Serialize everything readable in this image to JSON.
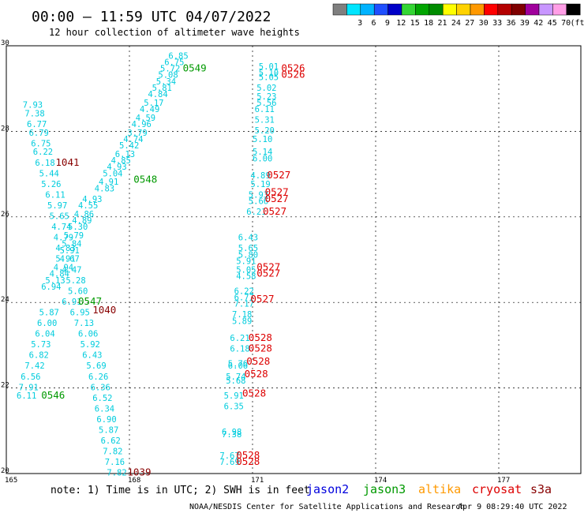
{
  "header": {
    "title": "00:00 – 11:59 UTC 04/07/2022",
    "subtitle": "12 hour collection of altimeter wave heights"
  },
  "color_scale": {
    "bins": [
      {
        "label": "",
        "color": "#7f7f7f"
      },
      {
        "label": "3",
        "color": "#00e5ff"
      },
      {
        "label": "6",
        "color": "#00b3ff"
      },
      {
        "label": "9",
        "color": "#1f4fff"
      },
      {
        "label": "12",
        "color": "#0000c8"
      },
      {
        "label": "15",
        "color": "#33d633"
      },
      {
        "label": "18",
        "color": "#00a500"
      },
      {
        "label": "21",
        "color": "#008c00"
      },
      {
        "label": "24",
        "color": "#ffff00"
      },
      {
        "label": "27",
        "color": "#ffd200"
      },
      {
        "label": "30",
        "color": "#ff9900"
      },
      {
        "label": "33",
        "color": "#ff0000"
      },
      {
        "label": "36",
        "color": "#b40000"
      },
      {
        "label": "39",
        "color": "#7f0000"
      },
      {
        "label": "42",
        "color": "#a0009c"
      },
      {
        "label": "45",
        "color": "#c896ff"
      },
      {
        "label": "70",
        "color": "#ff9ee6"
      },
      {
        "label": "(ft)",
        "color": "#000000"
      }
    ]
  },
  "footer": {
    "note": "note: 1) Time is in UTC; 2) SWH is in feet",
    "credit": "NOAA/NESDIS Center for Satellite Applications and Research",
    "generated": "Apr  9 08:29:40 UTC 2022"
  },
  "legend": [
    {
      "name": "jason2",
      "color": "#0000dd"
    },
    {
      "name": "jason3",
      "color": "#009900"
    },
    {
      "name": "altika",
      "color": "#ff9900"
    },
    {
      "name": "cryosat",
      "color": "#dd0000"
    },
    {
      "name": "s3a",
      "color": "#880000"
    }
  ],
  "chart_data": {
    "type": "scatter",
    "xlim": [
      165,
      179
    ],
    "ylim": [
      20,
      30
    ],
    "x_ticks": [
      "165",
      "168",
      "171",
      "174",
      "177"
    ],
    "y_ticks": [
      "30",
      "28",
      "26",
      "24",
      "22",
      "20"
    ],
    "grid": true,
    "series": [
      {
        "name": "swh",
        "color": "#00ccdd",
        "points": [
          {
            "x": 168.95,
            "y": 29.7,
            "label": "6.85"
          },
          {
            "x": 168.85,
            "y": 29.55,
            "label": "6.75"
          },
          {
            "x": 168.75,
            "y": 29.4,
            "label": "5.72"
          },
          {
            "x": 168.7,
            "y": 29.25,
            "label": "5.08"
          },
          {
            "x": 168.65,
            "y": 29.1,
            "label": "5.34"
          },
          {
            "x": 168.55,
            "y": 28.95,
            "label": "5.81"
          },
          {
            "x": 168.45,
            "y": 28.8,
            "label": "4.84"
          },
          {
            "x": 168.35,
            "y": 28.6,
            "label": "5.17"
          },
          {
            "x": 168.25,
            "y": 28.45,
            "label": "4.49"
          },
          {
            "x": 168.15,
            "y": 28.25,
            "label": "4.59"
          },
          {
            "x": 168.05,
            "y": 28.1,
            "label": "4.96"
          },
          {
            "x": 167.95,
            "y": 27.9,
            "label": "3.79"
          },
          {
            "x": 167.85,
            "y": 27.75,
            "label": "4.74"
          },
          {
            "x": 167.75,
            "y": 27.6,
            "label": "5.42"
          },
          {
            "x": 167.65,
            "y": 27.4,
            "label": "6.13"
          },
          {
            "x": 167.55,
            "y": 27.25,
            "label": "4.85"
          },
          {
            "x": 167.45,
            "y": 27.1,
            "label": "4.93"
          },
          {
            "x": 167.35,
            "y": 26.95,
            "label": "5.04"
          },
          {
            "x": 167.25,
            "y": 26.75,
            "label": "4.91"
          },
          {
            "x": 167.15,
            "y": 26.6,
            "label": "4.83"
          },
          {
            "x": 166.85,
            "y": 26.35,
            "label": "4.93"
          },
          {
            "x": 166.75,
            "y": 26.2,
            "label": "4.55"
          },
          {
            "x": 166.65,
            "y": 26.0,
            "label": "4.86"
          },
          {
            "x": 166.6,
            "y": 25.85,
            "label": "4.89"
          },
          {
            "x": 166.5,
            "y": 25.7,
            "label": "5.30"
          },
          {
            "x": 166.4,
            "y": 25.5,
            "label": "5.79"
          },
          {
            "x": 166.35,
            "y": 25.3,
            "label": "5.84"
          },
          {
            "x": 166.3,
            "y": 25.15,
            "label": "5.91"
          },
          {
            "x": 166.2,
            "y": 24.95,
            "label": "5.91"
          },
          {
            "x": 166.15,
            "y": 24.75,
            "label": "4.94"
          },
          {
            "x": 166.05,
            "y": 24.6,
            "label": "4.84"
          },
          {
            "x": 165.95,
            "y": 24.45,
            "label": "5.13"
          },
          {
            "x": 165.85,
            "y": 24.3,
            "label": "6.94"
          },
          {
            "x": 165.4,
            "y": 28.55,
            "label": "7.93"
          },
          {
            "x": 165.45,
            "y": 28.35,
            "label": "7.38"
          },
          {
            "x": 165.5,
            "y": 28.1,
            "label": "6.77"
          },
          {
            "x": 165.55,
            "y": 27.9,
            "label": "6.79"
          },
          {
            "x": 165.6,
            "y": 27.65,
            "label": "6.75"
          },
          {
            "x": 165.65,
            "y": 27.45,
            "label": "6.22"
          },
          {
            "x": 165.7,
            "y": 27.2,
            "label": "6.18"
          },
          {
            "x": 165.8,
            "y": 26.95,
            "label": "5.44"
          },
          {
            "x": 165.85,
            "y": 26.7,
            "label": "5.26"
          },
          {
            "x": 165.95,
            "y": 26.45,
            "label": "6.11"
          },
          {
            "x": 166.0,
            "y": 26.2,
            "label": "5.97"
          },
          {
            "x": 166.05,
            "y": 25.95,
            "label": "5.65"
          },
          {
            "x": 166.1,
            "y": 25.7,
            "label": "4.74"
          },
          {
            "x": 166.15,
            "y": 25.45,
            "label": "4.79"
          },
          {
            "x": 166.2,
            "y": 25.2,
            "label": "4.83"
          },
          {
            "x": 166.3,
            "y": 24.95,
            "label": "4.67"
          },
          {
            "x": 166.35,
            "y": 24.7,
            "label": "4.47"
          },
          {
            "x": 166.45,
            "y": 24.45,
            "label": "5.28"
          },
          {
            "x": 166.5,
            "y": 24.2,
            "label": "5.60"
          },
          {
            "x": 166.35,
            "y": 23.95,
            "label": "6.91"
          },
          {
            "x": 166.55,
            "y": 23.7,
            "label": "6.95"
          },
          {
            "x": 166.65,
            "y": 23.45,
            "label": "7.13"
          },
          {
            "x": 166.75,
            "y": 23.2,
            "label": "6.06"
          },
          {
            "x": 166.8,
            "y": 22.95,
            "label": "5.92"
          },
          {
            "x": 166.85,
            "y": 22.7,
            "label": "6.43"
          },
          {
            "x": 166.95,
            "y": 22.45,
            "label": "5.69"
          },
          {
            "x": 167.0,
            "y": 22.2,
            "label": "6.26"
          },
          {
            "x": 167.05,
            "y": 21.95,
            "label": "6.36"
          },
          {
            "x": 167.1,
            "y": 21.7,
            "label": "6.52"
          },
          {
            "x": 167.15,
            "y": 21.45,
            "label": "6.34"
          },
          {
            "x": 167.2,
            "y": 21.2,
            "label": "6.90"
          },
          {
            "x": 167.25,
            "y": 20.95,
            "label": "5.87"
          },
          {
            "x": 167.3,
            "y": 20.7,
            "label": "6.62"
          },
          {
            "x": 167.35,
            "y": 20.45,
            "label": "7.82"
          },
          {
            "x": 167.4,
            "y": 20.2,
            "label": "7.16"
          },
          {
            "x": 167.45,
            "y": 19.95,
            "label": "7.82"
          },
          {
            "x": 165.8,
            "y": 23.7,
            "label": "5.87"
          },
          {
            "x": 165.75,
            "y": 23.45,
            "label": "6.00"
          },
          {
            "x": 165.7,
            "y": 23.2,
            "label": "6.04"
          },
          {
            "x": 165.6,
            "y": 22.95,
            "label": "5.73"
          },
          {
            "x": 165.55,
            "y": 22.7,
            "label": "6.82"
          },
          {
            "x": 165.45,
            "y": 22.45,
            "label": "7.42"
          },
          {
            "x": 165.35,
            "y": 22.2,
            "label": "6.56"
          },
          {
            "x": 165.3,
            "y": 21.95,
            "label": "7.91"
          },
          {
            "x": 165.25,
            "y": 21.75,
            "label": "6.11"
          },
          {
            "x": 171.15,
            "y": 29.45,
            "label": "5.01"
          },
          {
            "x": 171.15,
            "y": 29.3,
            "label": "5.10"
          },
          {
            "x": 171.15,
            "y": 29.2,
            "label": "5.05"
          },
          {
            "x": 171.1,
            "y": 28.95,
            "label": "5.02"
          },
          {
            "x": 171.1,
            "y": 28.75,
            "label": "5.23"
          },
          {
            "x": 171.1,
            "y": 28.6,
            "label": "5.56"
          },
          {
            "x": 171.05,
            "y": 28.45,
            "label": "6.11"
          },
          {
            "x": 171.05,
            "y": 28.2,
            "label": "5.31"
          },
          {
            "x": 171.05,
            "y": 27.95,
            "label": "5.20"
          },
          {
            "x": 171.0,
            "y": 27.75,
            "label": "5.10"
          },
          {
            "x": 171.0,
            "y": 27.45,
            "label": "5.14"
          },
          {
            "x": 171.0,
            "y": 27.3,
            "label": "6.00"
          },
          {
            "x": 170.95,
            "y": 26.9,
            "label": "4.89"
          },
          {
            "x": 170.95,
            "y": 26.7,
            "label": "5.19"
          },
          {
            "x": 170.9,
            "y": 26.45,
            "label": "5.93"
          },
          {
            "x": 170.9,
            "y": 26.3,
            "label": "5.66"
          },
          {
            "x": 170.85,
            "y": 26.05,
            "label": "6.21"
          },
          {
            "x": 170.65,
            "y": 25.45,
            "label": "6.43"
          },
          {
            "x": 170.65,
            "y": 25.2,
            "label": "5.65"
          },
          {
            "x": 170.65,
            "y": 25.05,
            "label": "5.80"
          },
          {
            "x": 170.6,
            "y": 24.9,
            "label": "5.91"
          },
          {
            "x": 170.6,
            "y": 24.7,
            "label": "5.05"
          },
          {
            "x": 170.6,
            "y": 24.55,
            "label": "4.58"
          },
          {
            "x": 170.55,
            "y": 24.2,
            "label": "6.22"
          },
          {
            "x": 170.55,
            "y": 24.05,
            "label": "6.77"
          },
          {
            "x": 170.55,
            "y": 23.9,
            "label": "7.17"
          },
          {
            "x": 170.5,
            "y": 23.65,
            "label": "7.18"
          },
          {
            "x": 170.5,
            "y": 23.5,
            "label": "5.89"
          },
          {
            "x": 170.45,
            "y": 23.1,
            "label": "6.21"
          },
          {
            "x": 170.45,
            "y": 22.85,
            "label": "6.18"
          },
          {
            "x": 170.4,
            "y": 22.5,
            "label": "5.76"
          },
          {
            "x": 170.4,
            "y": 22.45,
            "label": "6.06"
          },
          {
            "x": 170.35,
            "y": 22.2,
            "label": "5.74"
          },
          {
            "x": 170.35,
            "y": 22.1,
            "label": "5.68"
          },
          {
            "x": 170.3,
            "y": 21.75,
            "label": "5.91"
          },
          {
            "x": 170.3,
            "y": 21.5,
            "label": "6.35"
          },
          {
            "x": 170.25,
            "y": 20.9,
            "label": "6.98"
          },
          {
            "x": 170.25,
            "y": 20.85,
            "label": "7.38"
          },
          {
            "x": 170.2,
            "y": 20.35,
            "label": "7.67"
          },
          {
            "x": 170.2,
            "y": 20.2,
            "label": "7.69"
          }
        ]
      },
      {
        "name": "pass-jason3",
        "color": "#009900",
        "points": [
          {
            "x": 169.3,
            "y": 29.4,
            "label": "0549"
          },
          {
            "x": 168.1,
            "y": 26.8,
            "label": "0548"
          },
          {
            "x": 166.75,
            "y": 23.95,
            "label": "0547"
          },
          {
            "x": 165.85,
            "y": 21.75,
            "label": "0546"
          }
        ]
      },
      {
        "name": "pass-cryosat",
        "color": "#dd0000",
        "points": [
          {
            "x": 171.7,
            "y": 29.4,
            "label": "0526"
          },
          {
            "x": 171.7,
            "y": 29.25,
            "label": "0526"
          },
          {
            "x": 171.35,
            "y": 26.9,
            "label": "0527"
          },
          {
            "x": 171.3,
            "y": 26.5,
            "label": "0527"
          },
          {
            "x": 171.3,
            "y": 26.35,
            "label": "0527"
          },
          {
            "x": 171.25,
            "y": 26.05,
            "label": "0527"
          },
          {
            "x": 171.1,
            "y": 24.75,
            "label": "0527"
          },
          {
            "x": 171.1,
            "y": 24.6,
            "label": "0527"
          },
          {
            "x": 170.95,
            "y": 24.0,
            "label": "0527"
          },
          {
            "x": 170.9,
            "y": 23.1,
            "label": "0528"
          },
          {
            "x": 170.9,
            "y": 22.85,
            "label": "0528"
          },
          {
            "x": 170.85,
            "y": 22.55,
            "label": "0528"
          },
          {
            "x": 170.8,
            "y": 22.25,
            "label": "0528"
          },
          {
            "x": 170.75,
            "y": 21.8,
            "label": "0528"
          },
          {
            "x": 170.6,
            "y": 20.35,
            "label": "0528"
          },
          {
            "x": 170.6,
            "y": 20.2,
            "label": "0528"
          }
        ]
      },
      {
        "name": "pass-s3a",
        "color": "#880000",
        "points": [
          {
            "x": 166.2,
            "y": 27.2,
            "label": "1041"
          },
          {
            "x": 167.1,
            "y": 23.75,
            "label": "1040"
          },
          {
            "x": 167.95,
            "y": 19.95,
            "label": "1039"
          }
        ]
      }
    ]
  }
}
